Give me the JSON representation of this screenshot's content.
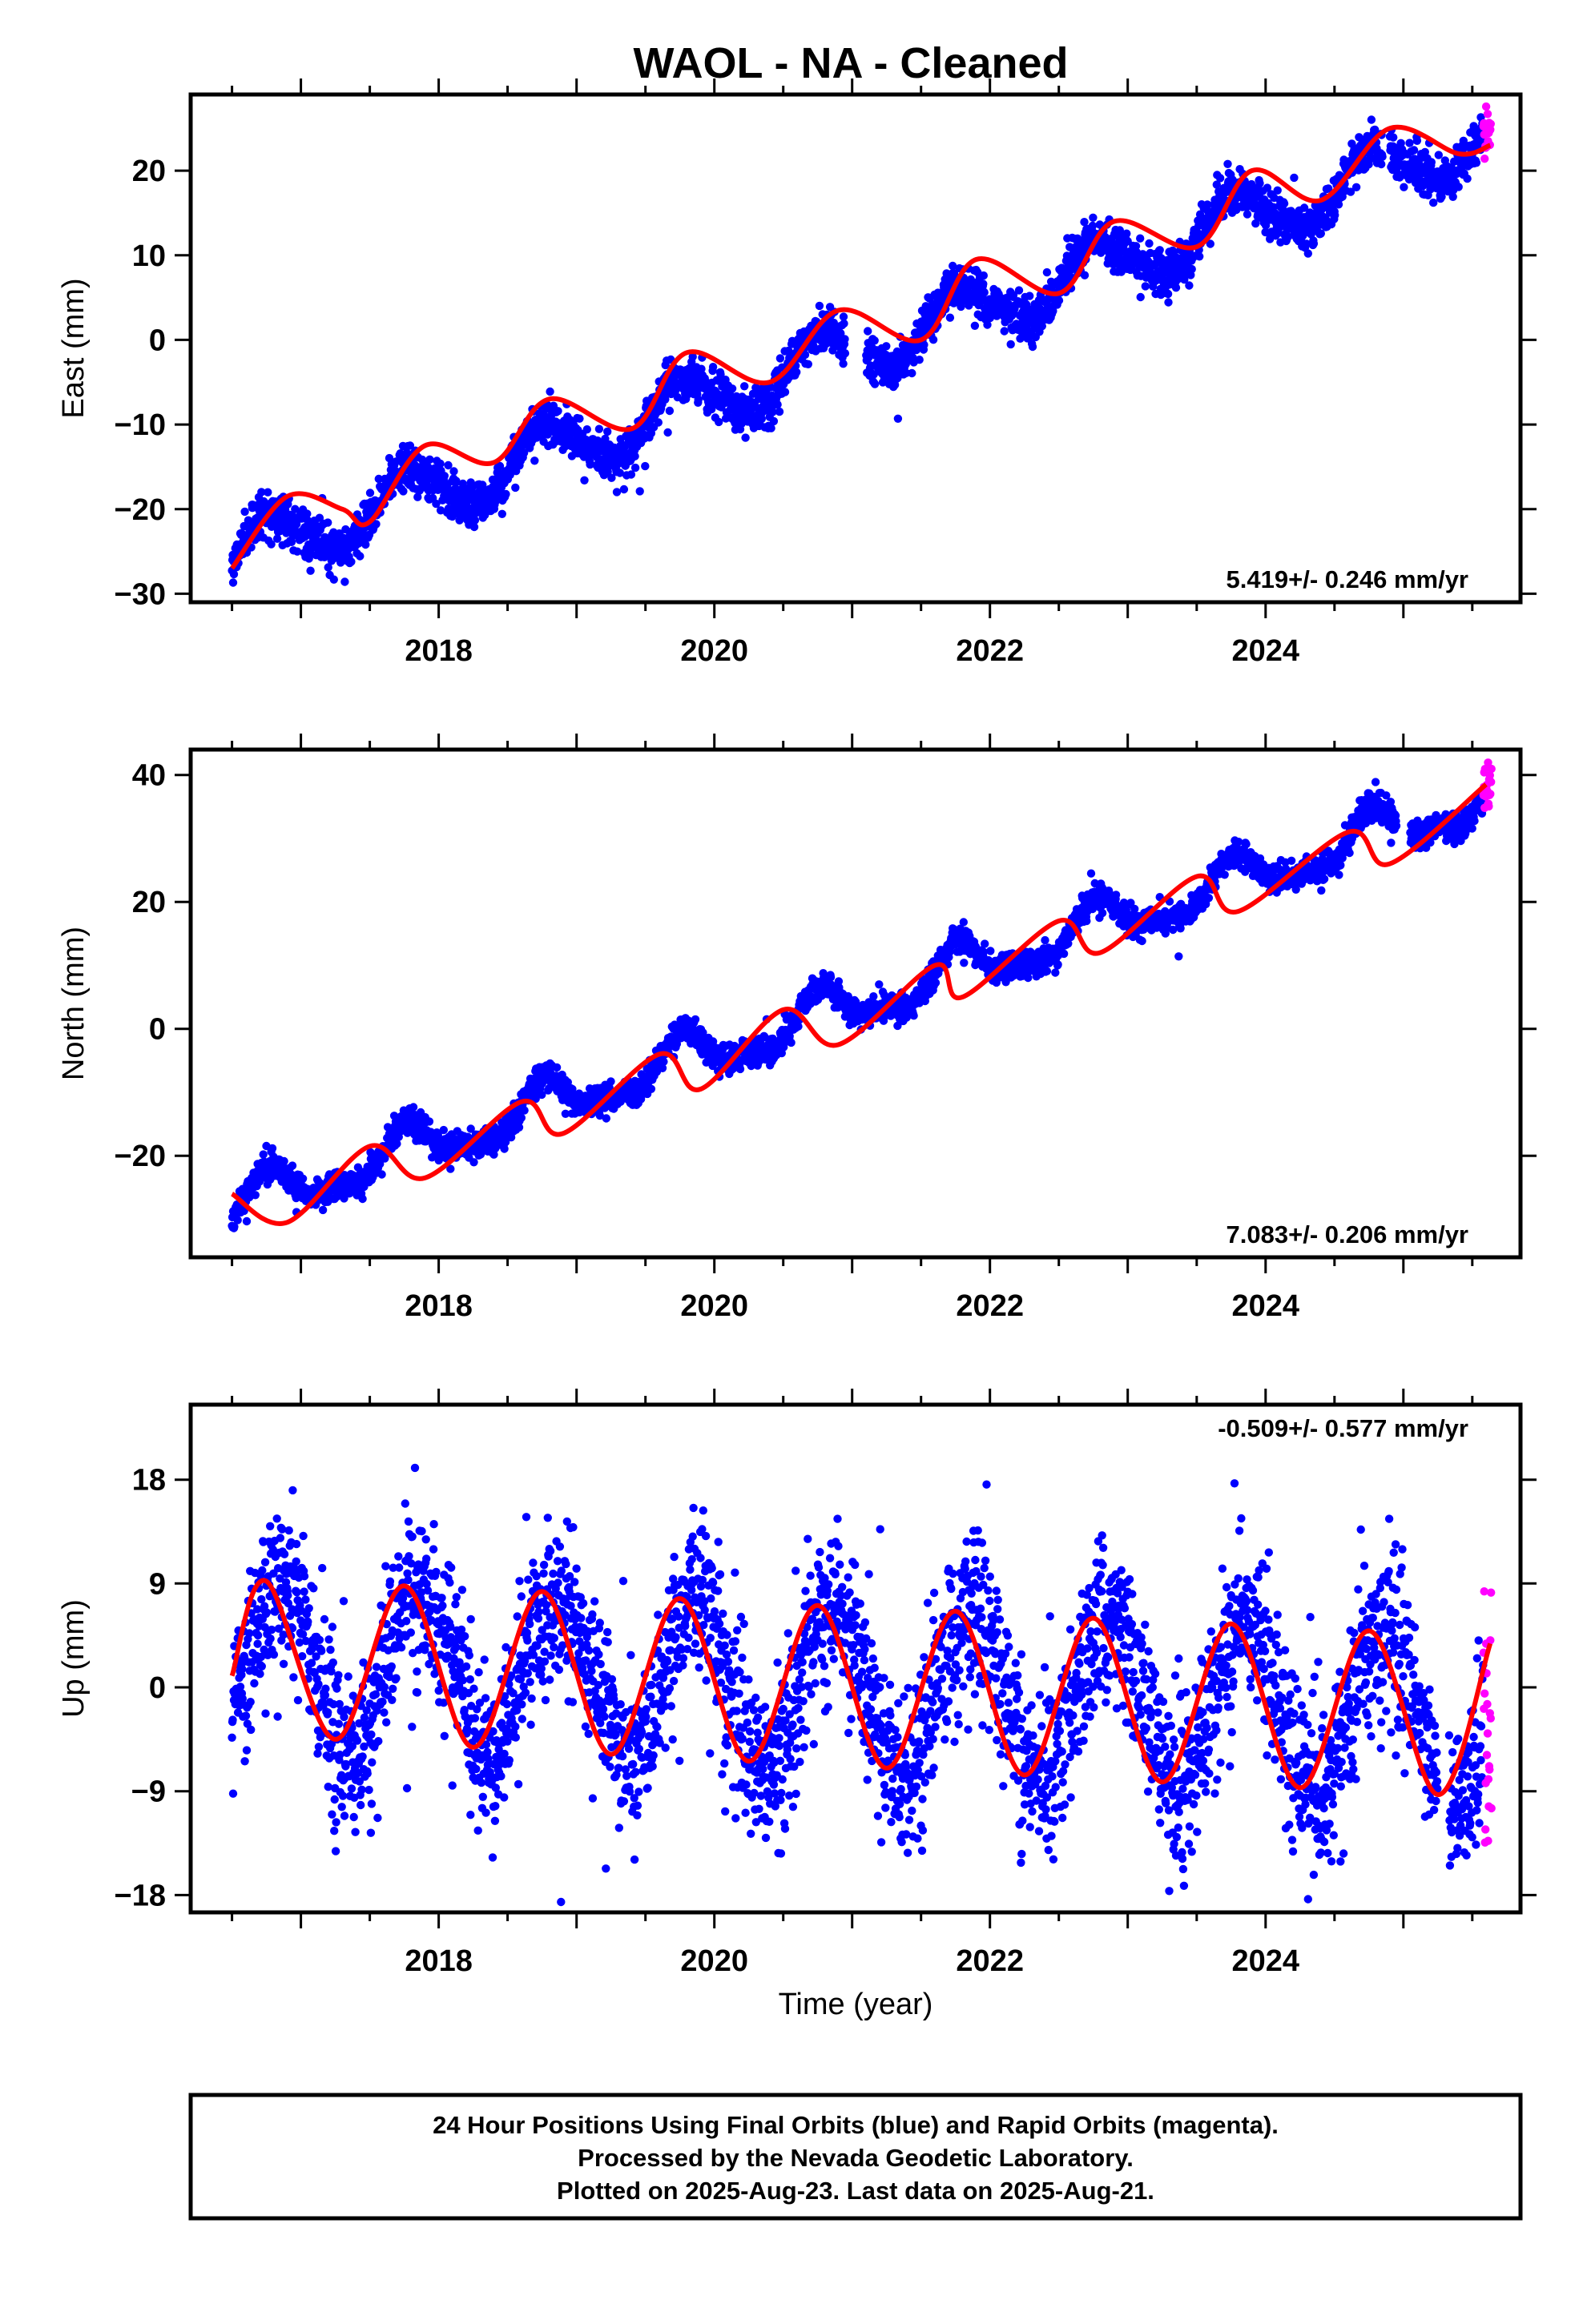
{
  "title": "WAOL  - NA - Cleaned",
  "colors": {
    "final_orbits": "#0000ff",
    "rapid_orbits": "#ff00ff",
    "model_fit": "#ff0000",
    "frame": "#000000"
  },
  "xlabel": "Time (year)",
  "footer": {
    "line1": "24 Hour Positions Using Final Orbits (blue) and Rapid Orbits (magenta).",
    "line2": "Processed by the Nevada Geodetic Laboratory.",
    "line3": "Plotted on 2025-Aug-23. Last data on 2025-Aug-21."
  },
  "chart_data": [
    {
      "type": "scatter",
      "component": "east",
      "ylabel": "East (mm)",
      "xlim": [
        2016.2,
        2025.85
      ],
      "ylim": [
        -31,
        29
      ],
      "xticks": [
        2018,
        2020,
        2022,
        2024
      ],
      "xtick_labels": [
        "2018",
        "2020",
        "2022",
        "2024"
      ],
      "yticks": [
        -30,
        -20,
        -10,
        0,
        10,
        20
      ],
      "ytick_labels": [
        "−30",
        "−20",
        "−10",
        "0",
        "10",
        "20"
      ],
      "rate_text": "5.419+/- 0.246 mm/yr",
      "rate_position": "bottom-right",
      "data_start": 2016.5,
      "data_end": 2025.64,
      "rapid_orbits_start": 2025.58,
      "model": {
        "offset_mm": -25.6,
        "rate_mm_per_yr": 5.419,
        "annual_cos": -0.6,
        "annual_sin": 3.3,
        "semiannual_cos": -0.2,
        "semiannual_sin": 0.4
      },
      "scatter_mm": 1.3,
      "gaps": [
        [
          2020.95,
          2021.1
        ],
        [
          2024.85,
          2024.9
        ]
      ],
      "fit_curve": {
        "x": [
          2016.5,
          2016.9,
          2017.3,
          2017.5,
          2017.9,
          2018.4,
          2018.8,
          2019.4,
          2019.8,
          2020.4,
          2020.9,
          2021.5,
          2021.9,
          2022.5,
          2022.9,
          2023.5,
          2023.9,
          2024.4,
          2024.9,
          2025.4,
          2025.63
        ],
        "y": [
          -27,
          -18.5,
          -20,
          -21.5,
          -12.5,
          -14.5,
          -7,
          -10.5,
          -1.5,
          -5,
          3.5,
          0,
          9.5,
          5.5,
          14,
          11,
          20,
          16.5,
          25,
          22,
          23
        ]
      }
    },
    {
      "type": "scatter",
      "component": "north",
      "ylabel": "North (mm)",
      "xlim": [
        2016.2,
        2025.85
      ],
      "ylim": [
        -36,
        44
      ],
      "xticks": [
        2018,
        2020,
        2022,
        2024
      ],
      "xtick_labels": [
        "2018",
        "2020",
        "2022",
        "2024"
      ],
      "yticks": [
        -20,
        0,
        20,
        40
      ],
      "ytick_labels": [
        "−20",
        "0",
        "20",
        "40"
      ],
      "rate_text": "7.083+/- 0.206 mm/yr",
      "rate_position": "bottom-right",
      "data_start": 2016.5,
      "data_end": 2025.64,
      "rapid_orbits_start": 2025.58,
      "model": {
        "offset_mm": -28.2,
        "rate_mm_per_yr": 7.083,
        "annual_cos": -0.5,
        "annual_sin": 3.4,
        "semiannual_cos": -1.3,
        "semiannual_sin": 0.0
      },
      "scatter_mm": 1.1,
      "gaps": [
        [
          2024.95,
          2025.05
        ]
      ],
      "fit_curve": {
        "x": [
          2016.5,
          2016.9,
          2017.5,
          2017.9,
          2018.6,
          2018.9,
          2019.6,
          2019.9,
          2020.5,
          2020.9,
          2021.6,
          2021.8,
          2022.5,
          2022.8,
          2023.5,
          2023.8,
          2024.6,
          2024.9,
          2025.6
        ],
        "y": [
          -26,
          -30.5,
          -18.5,
          -23.5,
          -11.5,
          -16.5,
          -4,
          -9.5,
          3,
          -2.5,
          10,
          5,
          17,
          12,
          24,
          18.5,
          31,
          26,
          38.5
        ]
      }
    },
    {
      "type": "scatter",
      "component": "up",
      "ylabel": "Up (mm)",
      "xlim": [
        2016.2,
        2025.85
      ],
      "ylim": [
        -19.5,
        24.5
      ],
      "xticks": [
        2018,
        2020,
        2022,
        2024
      ],
      "xtick_labels": [
        "2018",
        "2020",
        "2022",
        "2024"
      ],
      "yticks": [
        -18,
        -9,
        0,
        9,
        18
      ],
      "ytick_labels": [
        "−18",
        "−9",
        "0",
        "9",
        "18"
      ],
      "rate_text": "-0.509+/- 0.577 mm/yr",
      "rate_position": "top-right",
      "data_start": 2016.5,
      "data_end": 2025.64,
      "rapid_orbits_start": 2025.58,
      "model": {
        "offset_mm": 2.2,
        "rate_mm_per_yr": -0.509,
        "annual_cos": -4.6,
        "annual_sin": 5.3,
        "semiannual_cos": 0.0,
        "semiannual_sin": 0.0
      },
      "scatter_mm": 3.6,
      "gaps": [
        [
          2025.25,
          2025.33
        ]
      ],
      "fit_curve": {
        "x": [
          2016.5,
          2016.75,
          2017.25,
          2017.75,
          2018.25,
          2018.75,
          2019.25,
          2019.75,
          2020.25,
          2020.75,
          2021.25,
          2021.75,
          2022.25,
          2022.75,
          2023.25,
          2023.75,
          2024.25,
          2024.75,
          2025.25,
          2025.63
        ],
        "y": [
          1,
          9.2,
          -4.5,
          8.8,
          -5.2,
          8.3,
          -5.8,
          7.7,
          -6.4,
          7.1,
          -7,
          6.6,
          -7.6,
          6,
          -8.2,
          5.5,
          -8.7,
          4.9,
          -9.3,
          3.8
        ]
      }
    }
  ]
}
